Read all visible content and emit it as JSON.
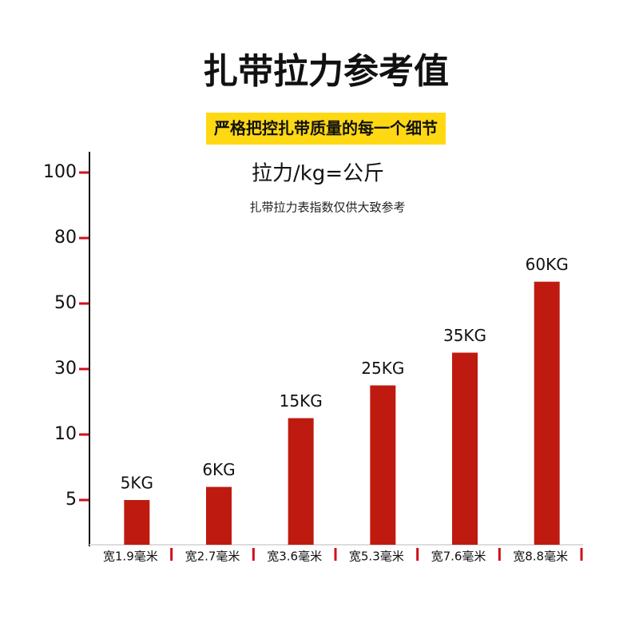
{
  "chart_data": {
    "type": "bar",
    "title": "扎带拉力参考值",
    "subtitle": "严格把控扎带质量的每一个细节",
    "axis_title": "拉力/kg=公斤",
    "note": "扎带拉力表指数仅供大致参考",
    "categories": [
      "宽1.9毫米",
      "宽2.7毫米",
      "宽3.6毫米",
      "宽5.3毫米",
      "宽7.6毫米",
      "宽8.8毫米"
    ],
    "values": [
      5,
      6,
      15,
      25,
      35,
      60
    ],
    "value_labels": [
      "5KG",
      "6KG",
      "15KG",
      "25KG",
      "35KG",
      "60KG"
    ],
    "color": "#bf1a10",
    "ylim": [
      0,
      100
    ],
    "yticks": [
      5,
      10,
      30,
      50,
      80,
      100
    ]
  }
}
